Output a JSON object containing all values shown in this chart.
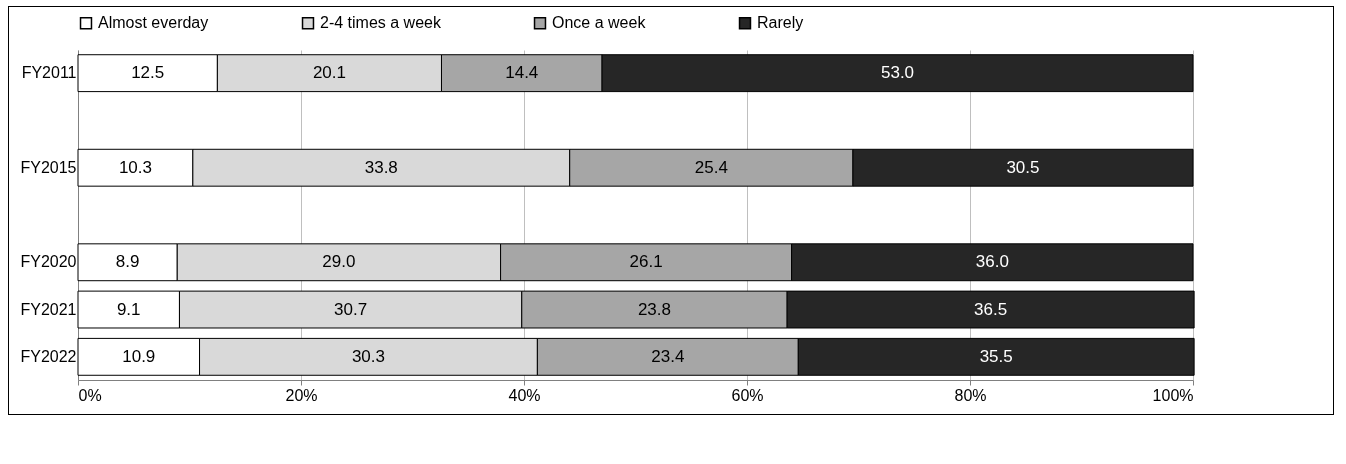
{
  "chart_data": {
    "type": "bar",
    "orientation": "horizontal",
    "stacked": true,
    "categories": [
      "FY2011",
      null,
      "FY2015",
      null,
      "FY2020",
      "FY2021",
      "FY2022"
    ],
    "series": [
      {
        "name": "Almost everday",
        "color": "#ffffff",
        "values": [
          12.5,
          null,
          10.3,
          null,
          8.9,
          9.1,
          10.9
        ],
        "value_labels": [
          "12.5",
          null,
          "10.3",
          null,
          "8.9",
          "9.1",
          "10.9"
        ]
      },
      {
        "name": "2-4 times a week",
        "color": "#d9d9d9",
        "values": [
          20.1,
          null,
          33.8,
          null,
          29.0,
          30.7,
          30.3
        ],
        "value_labels": [
          "20.1",
          null,
          "33.8",
          null,
          "29.0",
          "30.7",
          "30.3"
        ]
      },
      {
        "name": "Once a week",
        "color": "#a6a6a6",
        "values": [
          14.4,
          null,
          25.4,
          null,
          26.1,
          23.8,
          23.4
        ],
        "value_labels": [
          "14.4",
          null,
          "25.4",
          null,
          "26.1",
          "23.8",
          "23.4"
        ]
      },
      {
        "name": "Rarely",
        "color": "#262626",
        "values": [
          53.0,
          null,
          30.5,
          null,
          36.0,
          36.5,
          35.5
        ],
        "value_labels": [
          "53.0",
          null,
          "30.5",
          null,
          "36.0",
          "36.5",
          "35.5"
        ]
      }
    ],
    "xlim": [
      0,
      100
    ],
    "xticks": [
      {
        "value": 0,
        "label": "0%"
      },
      {
        "value": 20,
        "label": "20%"
      },
      {
        "value": 40,
        "label": "40%"
      },
      {
        "value": 60,
        "label": "60%"
      },
      {
        "value": 80,
        "label": "80%"
      },
      {
        "value": 100,
        "label": "100%"
      }
    ],
    "grid": "x",
    "legend": "top"
  }
}
